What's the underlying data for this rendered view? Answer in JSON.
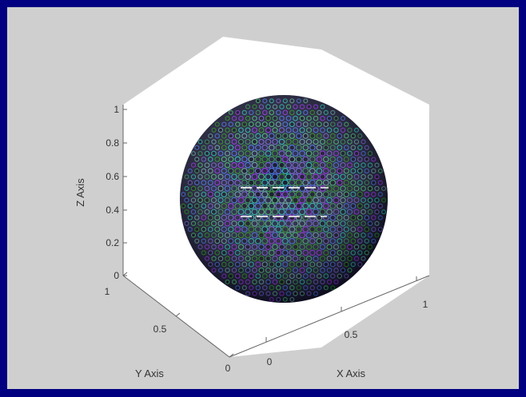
{
  "colors": {
    "frame": "#000080",
    "figure_bg": "#cfcfcf",
    "axes_bg": "#ffffff",
    "axis_line": "#666666",
    "marker_edges": [
      "#2e8b57",
      "#4169e1",
      "#8a2be2",
      "#228b22",
      "#20b2aa",
      "#5f9ea0",
      "#6a5acd",
      "#3cb371"
    ]
  },
  "chart_data": {
    "type": "scatter3d",
    "title": "",
    "xlabel": "X Axis",
    "ylabel": "Y Axis",
    "zlabel": "Z Axis",
    "xlim": [
      0,
      1
    ],
    "ylim": [
      0,
      1
    ],
    "zlim": [
      0,
      1
    ],
    "xticks": [
      "0",
      "0.5",
      "1"
    ],
    "yticks": [
      "0",
      "0.5",
      "1"
    ],
    "zticks": [
      "0",
      "0.2",
      "0.4",
      "0.6",
      "0.8",
      "1"
    ],
    "grid": false,
    "shape": "sphere",
    "center": [
      0.5,
      0.5,
      0.5
    ],
    "radius": 0.5,
    "marker": "circle"
  }
}
